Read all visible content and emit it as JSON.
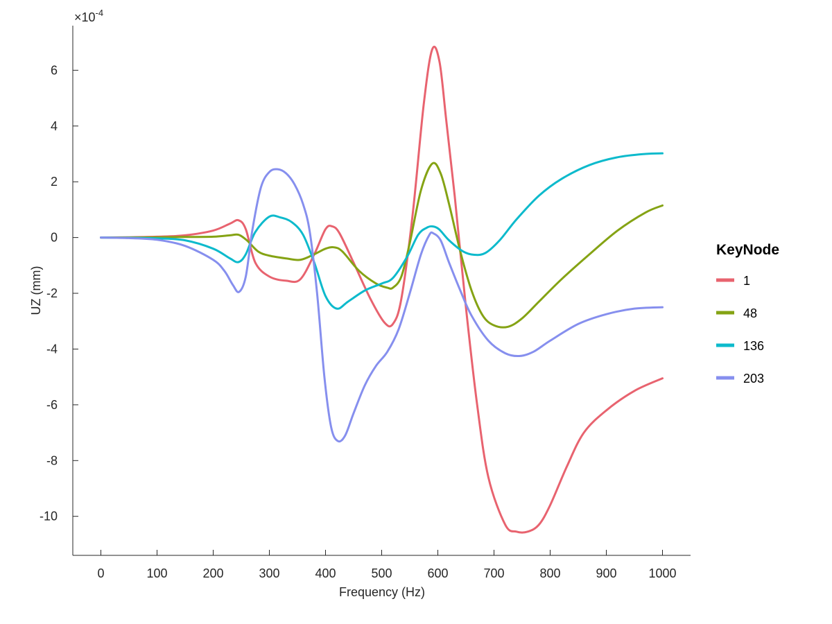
{
  "chart_data": {
    "type": "line",
    "title": "",
    "xlabel": "Frequency (Hz)",
    "ylabel": "UZ (mm)",
    "y_exponent_label": {
      "base": "×10",
      "exponent": "-4"
    },
    "xlim": [
      -50,
      1050
    ],
    "ylim": [
      -11.4,
      7.6
    ],
    "x_ticks": [
      0,
      100,
      200,
      300,
      400,
      500,
      600,
      700,
      800,
      900,
      1000
    ],
    "x_tick_labels": [
      "0",
      "100",
      "200",
      "300",
      "400",
      "500",
      "600",
      "700",
      "800",
      "900",
      "1000"
    ],
    "y_ticks": [
      6,
      4,
      2,
      0,
      -2,
      -4,
      -6,
      -8,
      -10
    ],
    "y_tick_labels": [
      "6",
      "4",
      "2",
      "0",
      "-2",
      "-4",
      "-6",
      "-8",
      "-10"
    ],
    "grid": false,
    "legend": {
      "title": "KeyNode",
      "placement": "right"
    },
    "series": [
      {
        "name": "1",
        "color": "#E8636F",
        "x": [
          0,
          50,
          100,
          150,
          200,
          230,
          245,
          258,
          275,
          300,
          330,
          355,
          380,
          400,
          412,
          425,
          450,
          480,
          505,
          520,
          535,
          555,
          575,
          590,
          603,
          615,
          630,
          650,
          670,
          690,
          720,
          740,
          760,
          780,
          800,
          830,
          860,
          900,
          950,
          1000
        ],
        "y": [
          0,
          0.01,
          0.03,
          0.08,
          0.25,
          0.5,
          0.62,
          0.3,
          -0.9,
          -1.4,
          -1.55,
          -1.5,
          -0.6,
          0.3,
          0.4,
          0.15,
          -0.9,
          -2.2,
          -3.05,
          -3.1,
          -2.2,
          0.8,
          4.8,
          6.75,
          6.3,
          4.2,
          1.5,
          -2.5,
          -6.0,
          -8.6,
          -10.3,
          -10.55,
          -10.55,
          -10.3,
          -9.6,
          -8.2,
          -7.0,
          -6.2,
          -5.5,
          -5.05
        ]
      },
      {
        "name": "48",
        "color": "#85A314",
        "x": [
          0,
          50,
          100,
          150,
          200,
          230,
          245,
          260,
          280,
          300,
          330,
          355,
          380,
          400,
          415,
          430,
          460,
          490,
          510,
          520,
          535,
          550,
          570,
          590,
          605,
          620,
          640,
          660,
          680,
          700,
          725,
          750,
          780,
          820,
          870,
          920,
          970,
          1000
        ],
        "y": [
          0,
          0,
          0.01,
          0.02,
          0.03,
          0.08,
          0.1,
          -0.1,
          -0.5,
          -0.65,
          -0.75,
          -0.8,
          -0.6,
          -0.4,
          -0.35,
          -0.5,
          -1.2,
          -1.65,
          -1.8,
          -1.8,
          -1.4,
          -0.2,
          1.7,
          2.65,
          2.3,
          1.2,
          -0.5,
          -1.9,
          -2.8,
          -3.15,
          -3.2,
          -2.9,
          -2.3,
          -1.5,
          -0.6,
          0.25,
          0.9,
          1.15
        ]
      },
      {
        "name": "136",
        "color": "#0DBACC",
        "x": [
          0,
          50,
          100,
          150,
          200,
          230,
          245,
          258,
          275,
          300,
          320,
          340,
          360,
          380,
          400,
          420,
          440,
          470,
          500,
          520,
          545,
          565,
          580,
          590,
          602,
          620,
          645,
          665,
          685,
          710,
          740,
          780,
          820,
          870,
          920,
          970,
          1000
        ],
        "y": [
          0,
          -0.01,
          -0.03,
          -0.1,
          -0.4,
          -0.75,
          -0.88,
          -0.6,
          0.2,
          0.75,
          0.72,
          0.55,
          0.1,
          -0.9,
          -2.1,
          -2.55,
          -2.3,
          -1.9,
          -1.65,
          -1.45,
          -0.7,
          0.1,
          0.35,
          0.4,
          0.3,
          -0.1,
          -0.5,
          -0.62,
          -0.55,
          -0.1,
          0.65,
          1.5,
          2.1,
          2.6,
          2.88,
          3.0,
          3.02
        ]
      },
      {
        "name": "203",
        "color": "#868FEE",
        "x": [
          0,
          50,
          100,
          150,
          200,
          220,
          235,
          246,
          258,
          270,
          285,
          300,
          315,
          330,
          345,
          360,
          372,
          385,
          398,
          410,
          422,
          435,
          450,
          470,
          490,
          510,
          530,
          550,
          570,
          585,
          592,
          605,
          620,
          640,
          660,
          690,
          720,
          745,
          770,
          800,
          850,
          900,
          950,
          1000
        ],
        "y": [
          0,
          -0.02,
          -0.08,
          -0.3,
          -0.8,
          -1.2,
          -1.7,
          -1.95,
          -1.4,
          0.3,
          1.8,
          2.35,
          2.45,
          2.3,
          1.9,
          1.2,
          0.2,
          -2.0,
          -5.0,
          -6.8,
          -7.3,
          -7.1,
          -6.3,
          -5.3,
          -4.6,
          -4.1,
          -3.3,
          -2.0,
          -0.6,
          0.1,
          0.15,
          -0.1,
          -0.9,
          -1.9,
          -2.8,
          -3.7,
          -4.15,
          -4.25,
          -4.1,
          -3.7,
          -3.1,
          -2.75,
          -2.55,
          -2.5
        ]
      }
    ]
  }
}
